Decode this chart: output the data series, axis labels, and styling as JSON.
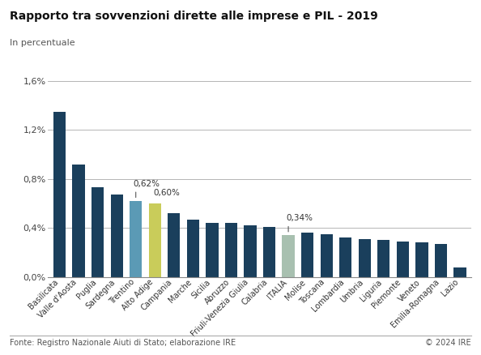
{
  "title": "Rapporto tra sovvenzioni dirette alle imprese e PIL - 2019",
  "subtitle": "In percentuale",
  "categories": [
    "Basilicata",
    "Valle d'Aosta",
    "Puglia",
    "Sardegna",
    "Trentino",
    "Alto Adige",
    "Campania",
    "Marche",
    "Sicilia",
    "Abruzzo",
    "Friuli-Venezia Giulia",
    "Calabria",
    "ITALIA",
    "Molise",
    "Toscana",
    "Lombardia",
    "Umbria",
    "Liguria",
    "Piemonte",
    "Veneto",
    "Emilia-Romagna",
    "Lazio"
  ],
  "values": [
    1.35,
    0.92,
    0.73,
    0.67,
    0.62,
    0.6,
    0.52,
    0.47,
    0.44,
    0.44,
    0.42,
    0.41,
    0.34,
    0.36,
    0.35,
    0.32,
    0.31,
    0.3,
    0.29,
    0.28,
    0.27,
    0.08
  ],
  "bar_colors": [
    "#1a3f5c",
    "#1a3f5c",
    "#1a3f5c",
    "#1a3f5c",
    "#5b9ab5",
    "#c9cc5a",
    "#1a3f5c",
    "#1a3f5c",
    "#1a3f5c",
    "#1a3f5c",
    "#1a3f5c",
    "#1a3f5c",
    "#a8c0b0",
    "#1a3f5c",
    "#1a3f5c",
    "#1a3f5c",
    "#1a3f5c",
    "#1a3f5c",
    "#1a3f5c",
    "#1a3f5c",
    "#1a3f5c",
    "#1a3f5c"
  ],
  "yticks": [
    0.0,
    0.4,
    0.8,
    1.2,
    1.6
  ],
  "ytick_labels": [
    "0,0%",
    "0,4%",
    "0,8%",
    "1,2%",
    "1,6%"
  ],
  "ylim": [
    0,
    1.68
  ],
  "footer_left": "Fonte: Registro Nazionale Aiuti di Stato; elaborazione IRE",
  "footer_right": "© 2024 IRE",
  "background_color": "#ffffff",
  "bar_width": 0.65,
  "ann_trentino_idx": 4,
  "ann_trentino_text": "0,62%",
  "ann_altoadige_idx": 5,
  "ann_altoadige_text": "0,60%",
  "ann_italia_idx": 12,
  "ann_italia_text": "0,34%"
}
